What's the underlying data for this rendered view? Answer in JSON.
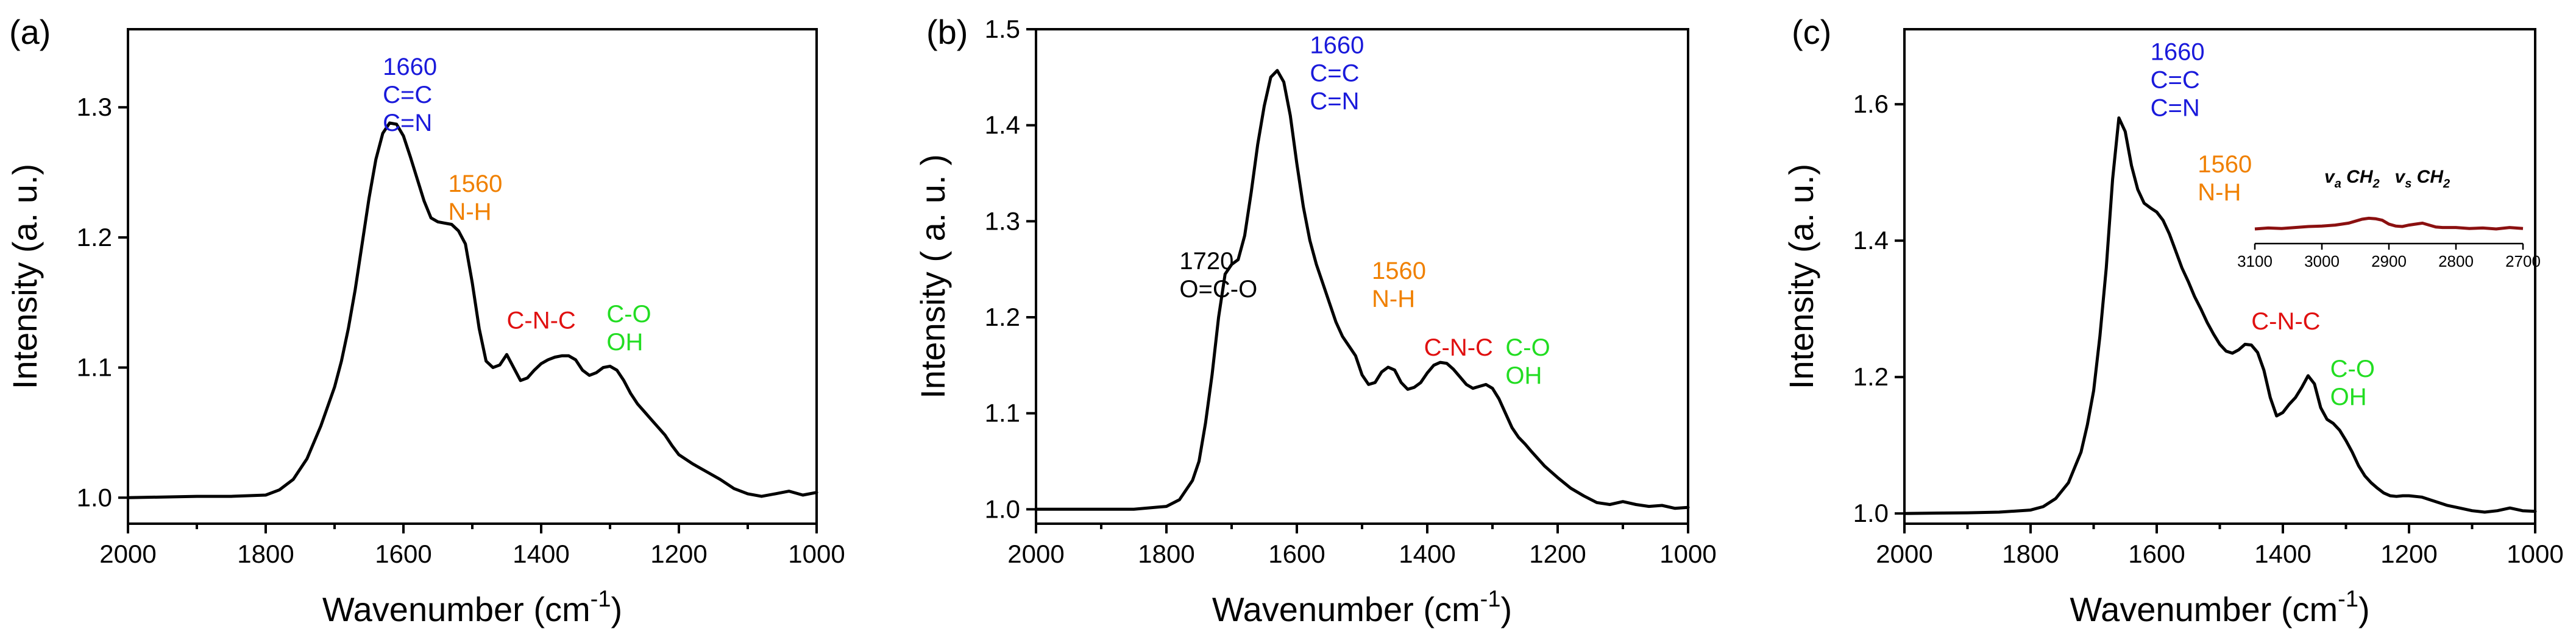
{
  "chart_data": [
    {
      "type": "line",
      "panel_label": "(a)",
      "xlabel": "Wavenumber (cm",
      "xlabel_sup": "-1",
      "xlabel_end": ")",
      "ylabel": "Intensity (a. u.)",
      "xlim": [
        2000,
        1000
      ],
      "ylim": [
        0.98,
        1.36
      ],
      "xticks": [
        2000,
        1800,
        1600,
        1400,
        1200,
        1000
      ],
      "yticks": [
        1.0,
        1.1,
        1.2,
        1.3
      ],
      "ytick_labels": [
        "1.0",
        "1.1",
        "1.2",
        "1.3"
      ],
      "series": [
        {
          "name": "spectrum",
          "x": [
            2000,
            1900,
            1850,
            1800,
            1780,
            1760,
            1740,
            1720,
            1700,
            1690,
            1680,
            1670,
            1660,
            1650,
            1640,
            1630,
            1620,
            1610,
            1600,
            1590,
            1580,
            1570,
            1560,
            1550,
            1540,
            1530,
            1520,
            1510,
            1500,
            1490,
            1480,
            1470,
            1460,
            1450,
            1440,
            1430,
            1420,
            1410,
            1400,
            1390,
            1380,
            1370,
            1360,
            1350,
            1340,
            1330,
            1320,
            1310,
            1300,
            1290,
            1280,
            1270,
            1260,
            1250,
            1240,
            1230,
            1220,
            1210,
            1200,
            1180,
            1160,
            1140,
            1120,
            1100,
            1080,
            1060,
            1040,
            1020,
            1000
          ],
          "y": [
            1.0,
            1.001,
            1.001,
            1.002,
            1.006,
            1.014,
            1.03,
            1.055,
            1.085,
            1.105,
            1.13,
            1.16,
            1.195,
            1.23,
            1.26,
            1.28,
            1.288,
            1.287,
            1.278,
            1.262,
            1.245,
            1.228,
            1.215,
            1.212,
            1.211,
            1.21,
            1.205,
            1.195,
            1.165,
            1.13,
            1.105,
            1.1,
            1.102,
            1.11,
            1.1,
            1.09,
            1.092,
            1.098,
            1.103,
            1.106,
            1.108,
            1.109,
            1.109,
            1.106,
            1.098,
            1.094,
            1.096,
            1.1,
            1.101,
            1.098,
            1.09,
            1.08,
            1.072,
            1.066,
            1.06,
            1.054,
            1.048,
            1.04,
            1.033,
            1.026,
            1.02,
            1.014,
            1.007,
            1.003,
            1.001,
            1.003,
            1.005,
            1.002,
            1.004
          ]
        }
      ],
      "annotations": [
        {
          "lines": [
            "1660",
            "C=C",
            "C=N"
          ],
          "color": "#1a1adb",
          "x": 1630,
          "y": 1.325
        },
        {
          "lines": [
            "1560",
            "N-H"
          ],
          "color": "#f08000",
          "x": 1535,
          "y": 1.235
        },
        {
          "lines": [
            "C-N-C"
          ],
          "color": "#e01010",
          "x": 1450,
          "y": 1.13
        },
        {
          "lines": [
            "C-O",
            "OH"
          ],
          "color": "#22dd22",
          "x": 1305,
          "y": 1.135
        }
      ]
    },
    {
      "type": "line",
      "panel_label": "(b)",
      "xlabel": "Wavenumber (cm",
      "xlabel_sup": "-1",
      "xlabel_end": ")",
      "ylabel": "Intensity ( a. u. )",
      "xlim": [
        2000,
        1000
      ],
      "ylim": [
        0.985,
        1.5
      ],
      "xticks": [
        2000,
        1800,
        1600,
        1400,
        1200,
        1000
      ],
      "yticks": [
        1.0,
        1.1,
        1.2,
        1.3,
        1.4,
        1.5
      ],
      "ytick_labels": [
        "1.0",
        "1.1",
        "1.2",
        "1.3",
        "1.4",
        "1.5"
      ],
      "series": [
        {
          "name": "spectrum",
          "x": [
            2000,
            1900,
            1850,
            1800,
            1780,
            1760,
            1750,
            1740,
            1730,
            1720,
            1710,
            1700,
            1690,
            1680,
            1670,
            1660,
            1650,
            1640,
            1630,
            1620,
            1610,
            1600,
            1590,
            1580,
            1570,
            1560,
            1550,
            1540,
            1530,
            1520,
            1510,
            1500,
            1490,
            1480,
            1470,
            1460,
            1450,
            1440,
            1430,
            1420,
            1410,
            1400,
            1390,
            1380,
            1370,
            1360,
            1350,
            1340,
            1330,
            1320,
            1310,
            1300,
            1290,
            1280,
            1270,
            1260,
            1250,
            1240,
            1220,
            1200,
            1180,
            1160,
            1140,
            1120,
            1100,
            1080,
            1060,
            1040,
            1020,
            1000
          ],
          "y": [
            1.0,
            1.0,
            1.0,
            1.003,
            1.01,
            1.03,
            1.05,
            1.09,
            1.14,
            1.2,
            1.245,
            1.255,
            1.26,
            1.285,
            1.33,
            1.38,
            1.42,
            1.45,
            1.457,
            1.445,
            1.41,
            1.36,
            1.315,
            1.28,
            1.255,
            1.235,
            1.215,
            1.195,
            1.18,
            1.17,
            1.16,
            1.14,
            1.13,
            1.132,
            1.143,
            1.148,
            1.145,
            1.132,
            1.125,
            1.127,
            1.132,
            1.142,
            1.15,
            1.153,
            1.152,
            1.146,
            1.138,
            1.13,
            1.126,
            1.128,
            1.13,
            1.126,
            1.115,
            1.1,
            1.085,
            1.075,
            1.068,
            1.06,
            1.045,
            1.033,
            1.022,
            1.014,
            1.007,
            1.005,
            1.008,
            1.005,
            1.003,
            1.004,
            1.001,
            1.002
          ]
        }
      ],
      "annotations": [
        {
          "lines": [
            "1660",
            "C=C",
            "C=N"
          ],
          "color": "#1a1adb",
          "x": 1580,
          "y": 1.475
        },
        {
          "lines": [
            "1720",
            "O=C-O"
          ],
          "color": "#000000",
          "x": 1780,
          "y": 1.25
        },
        {
          "lines": [
            "1560",
            "N-H"
          ],
          "color": "#f08000",
          "x": 1485,
          "y": 1.24
        },
        {
          "lines": [
            "C-N-C"
          ],
          "color": "#e01010",
          "x": 1405,
          "y": 1.16
        },
        {
          "lines": [
            "C-O",
            "OH"
          ],
          "color": "#22dd22",
          "x": 1280,
          "y": 1.16
        }
      ]
    },
    {
      "type": "line",
      "panel_label": "(c)",
      "xlabel": "Wavenumber (cm",
      "xlabel_sup": "-1",
      "xlabel_end": ")",
      "ylabel": "Intensity (a. u.)",
      "xlim": [
        2000,
        1000
      ],
      "ylim": [
        0.985,
        1.71
      ],
      "xticks": [
        2000,
        1800,
        1600,
        1400,
        1200,
        1000
      ],
      "yticks": [
        1.0,
        1.2,
        1.4,
        1.6
      ],
      "ytick_labels": [
        "1.0",
        "1.2",
        "1.4",
        "1.6"
      ],
      "series": [
        {
          "name": "spectrum",
          "x": [
            2000,
            1900,
            1850,
            1800,
            1780,
            1760,
            1740,
            1720,
            1710,
            1700,
            1690,
            1680,
            1670,
            1660,
            1650,
            1640,
            1630,
            1620,
            1610,
            1600,
            1590,
            1580,
            1570,
            1560,
            1550,
            1540,
            1530,
            1520,
            1510,
            1500,
            1490,
            1480,
            1470,
            1460,
            1450,
            1440,
            1430,
            1420,
            1410,
            1400,
            1390,
            1380,
            1370,
            1360,
            1350,
            1340,
            1330,
            1320,
            1310,
            1300,
            1290,
            1280,
            1270,
            1260,
            1250,
            1240,
            1230,
            1220,
            1210,
            1200,
            1180,
            1160,
            1140,
            1120,
            1100,
            1080,
            1060,
            1040,
            1020,
            1000
          ],
          "y": [
            1.0,
            1.001,
            1.002,
            1.005,
            1.01,
            1.022,
            1.045,
            1.09,
            1.13,
            1.18,
            1.26,
            1.36,
            1.49,
            1.58,
            1.56,
            1.51,
            1.475,
            1.455,
            1.448,
            1.442,
            1.43,
            1.41,
            1.385,
            1.36,
            1.34,
            1.318,
            1.3,
            1.28,
            1.263,
            1.248,
            1.238,
            1.235,
            1.24,
            1.248,
            1.247,
            1.236,
            1.21,
            1.17,
            1.143,
            1.148,
            1.16,
            1.17,
            1.185,
            1.202,
            1.19,
            1.155,
            1.138,
            1.132,
            1.122,
            1.107,
            1.09,
            1.07,
            1.055,
            1.045,
            1.037,
            1.03,
            1.026,
            1.025,
            1.026,
            1.026,
            1.024,
            1.018,
            1.012,
            1.008,
            1.004,
            1.002,
            1.004,
            1.008,
            1.004,
            1.003
          ]
        }
      ],
      "annotations": [
        {
          "lines": [
            "1660",
            "C=C",
            "C=N"
          ],
          "color": "#1a1adb",
          "x": 1610,
          "y": 1.665
        },
        {
          "lines": [
            "1560",
            "N-H"
          ],
          "color": "#f08000",
          "x": 1535,
          "y": 1.5
        },
        {
          "lines": [
            "C-N-C"
          ],
          "color": "#e01010",
          "x": 1450,
          "y": 1.27
        },
        {
          "lines": [
            "C-O",
            "OH"
          ],
          "color": "#22dd22",
          "x": 1325,
          "y": 1.2
        }
      ],
      "inset": {
        "type": "line",
        "xlim": [
          3100,
          2700
        ],
        "xticks": [
          3100,
          3000,
          2900,
          2800,
          2700
        ],
        "ylim": [
          0,
          1
        ],
        "annotations": [
          {
            "prefix": "v",
            "sub": "a",
            "text": " CH",
            "sub2": "2",
            "x": 2960
          },
          {
            "prefix": "v",
            "sub": "s",
            "text": " CH",
            "sub2": "2",
            "x": 2855
          }
        ],
        "series": [
          {
            "name": "CH2 region",
            "x": [
              3100,
              3080,
              3060,
              3040,
              3020,
              3000,
              2980,
              2960,
              2940,
              2930,
              2920,
              2910,
              2900,
              2890,
              2880,
              2870,
              2860,
              2850,
              2840,
              2830,
              2820,
              2800,
              2780,
              2760,
              2740,
              2720,
              2700
            ],
            "y": [
              0.3,
              0.32,
              0.31,
              0.33,
              0.35,
              0.36,
              0.38,
              0.42,
              0.5,
              0.52,
              0.51,
              0.48,
              0.4,
              0.36,
              0.35,
              0.38,
              0.4,
              0.42,
              0.38,
              0.34,
              0.33,
              0.33,
              0.31,
              0.32,
              0.3,
              0.33,
              0.31
            ]
          }
        ]
      }
    }
  ]
}
